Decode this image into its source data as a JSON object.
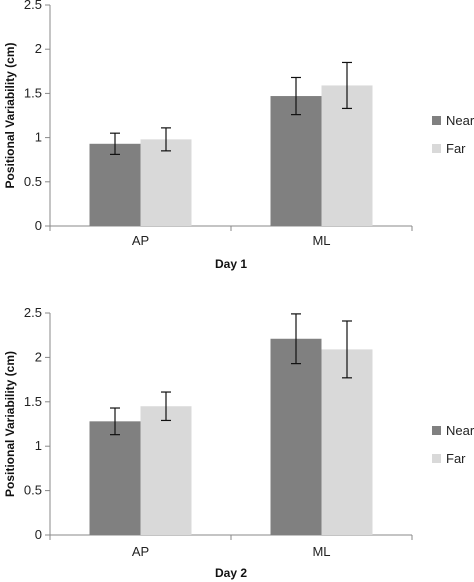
{
  "chart_data": [
    {
      "type": "bar",
      "xlabel": "Day 1",
      "ylabel": "Positional Variability (cm)",
      "categories": [
        "AP",
        "ML"
      ],
      "ylim": [
        0,
        2.5
      ],
      "yticks": [
        "0",
        "0.5",
        "1",
        "1.5",
        "2",
        "2.5"
      ],
      "series": [
        {
          "name": "Near",
          "color": "#808080",
          "values": [
            0.93,
            1.47
          ],
          "errors": [
            0.12,
            0.21
          ]
        },
        {
          "name": "Far",
          "color": "#d9d9d9",
          "values": [
            0.98,
            1.59
          ],
          "errors": [
            0.13,
            0.26
          ]
        }
      ],
      "grid": false,
      "legend_position": "right"
    },
    {
      "type": "bar",
      "xlabel": "Day 2",
      "ylabel": "Positional Variability (cm)",
      "categories": [
        "AP",
        "ML"
      ],
      "ylim": [
        0,
        2.5
      ],
      "yticks": [
        "0",
        "0.5",
        "1",
        "1.5",
        "2",
        "2.5"
      ],
      "series": [
        {
          "name": "Near",
          "color": "#808080",
          "values": [
            1.28,
            2.21
          ],
          "errors": [
            0.15,
            0.28
          ]
        },
        {
          "name": "Far",
          "color": "#d9d9d9",
          "values": [
            1.45,
            2.09
          ],
          "errors": [
            0.16,
            0.32
          ]
        }
      ],
      "grid": false,
      "legend_position": "right"
    }
  ]
}
